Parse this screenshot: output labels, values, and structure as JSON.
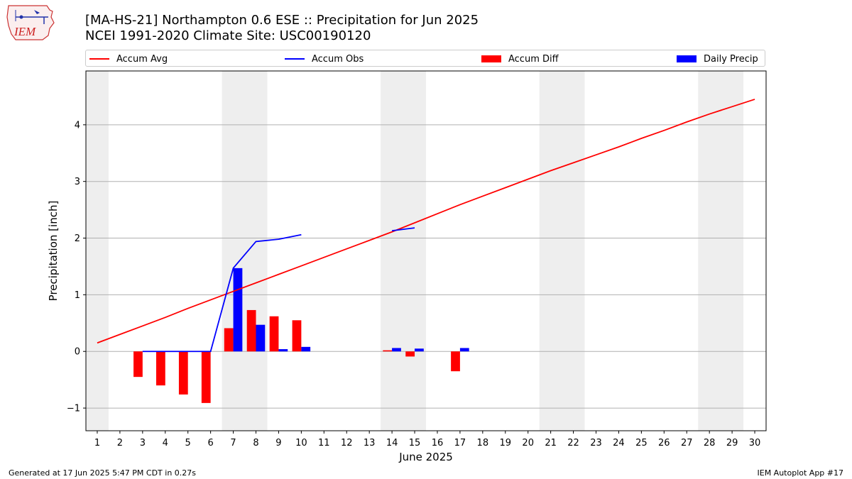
{
  "header": {
    "title_line1": "[MA-HS-21] Northampton 0.6 ESE :: Precipitation for Jun 2025",
    "title_line2": "NCEI 1991-2020 Climate Site: USC00190120",
    "logo_text": "IEM"
  },
  "legend": {
    "items": [
      {
        "label": "Accum Avg",
        "color": "#ff0000",
        "kind": "line"
      },
      {
        "label": "Accum Obs",
        "color": "#0000ff",
        "kind": "line"
      },
      {
        "label": "Accum Diff",
        "color": "#ff0000",
        "kind": "bar"
      },
      {
        "label": "Daily Precip",
        "color": "#0000ff",
        "kind": "bar"
      }
    ]
  },
  "footer": {
    "left": "Generated at 17 Jun 2025 5:47 PM CDT in 0.27s",
    "right": "IEM Autoplot App #17"
  },
  "chart_data": {
    "type": "bar",
    "title": "[MA-HS-21] Northampton 0.6 ESE :: Precipitation for Jun 2025",
    "xlabel": "June 2025",
    "ylabel": "Precipitation [inch]",
    "xlim": [
      0.5,
      30.5
    ],
    "ylim": [
      -1.4,
      4.95
    ],
    "xticks": [
      1,
      2,
      3,
      4,
      5,
      6,
      7,
      8,
      9,
      10,
      11,
      12,
      13,
      14,
      15,
      16,
      17,
      18,
      19,
      20,
      21,
      22,
      23,
      24,
      25,
      26,
      27,
      28,
      29,
      30
    ],
    "yticks": [
      -1,
      0,
      1,
      2,
      3,
      4
    ],
    "grid": "horizontal",
    "legend_position": "top",
    "weekend_shading": [
      [
        0.5,
        1.5
      ],
      [
        6.5,
        8.5
      ],
      [
        13.5,
        15.5
      ],
      [
        20.5,
        22.5
      ],
      [
        27.5,
        29.5
      ]
    ],
    "shade_color": "#eeeeee",
    "accum_avg": {
      "name": "Accum Avg",
      "color": "#ff0000",
      "x": [
        1,
        2,
        3,
        4,
        5,
        6,
        7,
        8,
        9,
        10,
        11,
        12,
        13,
        14,
        15,
        16,
        17,
        18,
        19,
        20,
        21,
        22,
        23,
        24,
        25,
        26,
        27,
        28,
        29,
        30
      ],
      "values": [
        0.15,
        0.3,
        0.45,
        0.6,
        0.76,
        0.91,
        1.06,
        1.21,
        1.36,
        1.51,
        1.66,
        1.81,
        1.96,
        2.11,
        2.27,
        2.43,
        2.59,
        2.74,
        2.89,
        3.04,
        3.19,
        3.33,
        3.47,
        3.61,
        3.76,
        3.9,
        4.05,
        4.19,
        4.32,
        4.45
      ]
    },
    "accum_obs": {
      "name": "Accum Obs",
      "color": "#0000ff",
      "segments": [
        {
          "x": [
            3,
            4,
            5,
            6,
            7,
            8,
            9,
            10
          ],
          "values": [
            0.0,
            0.0,
            0.0,
            0.0,
            1.47,
            1.94,
            1.98,
            2.06
          ]
        },
        {
          "x": [
            14,
            15
          ],
          "values": [
            2.13,
            2.18
          ]
        }
      ]
    },
    "accum_diff": {
      "name": "Accum Diff",
      "color": "#ff0000",
      "x": [
        3,
        4,
        5,
        6,
        7,
        8,
        9,
        10,
        14,
        15,
        17
      ],
      "values": [
        -0.45,
        -0.6,
        -0.76,
        -0.91,
        0.41,
        0.73,
        0.62,
        0.55,
        0.02,
        -0.09,
        -0.35
      ]
    },
    "daily_precip": {
      "name": "Daily Precip",
      "color": "#0000ff",
      "x": [
        3,
        4,
        5,
        6,
        7,
        8,
        9,
        10,
        14,
        15,
        17
      ],
      "values": [
        0.0,
        0.0,
        0.0,
        0.0,
        1.47,
        0.47,
        0.04,
        0.08,
        0.06,
        0.05,
        0.06
      ]
    }
  }
}
